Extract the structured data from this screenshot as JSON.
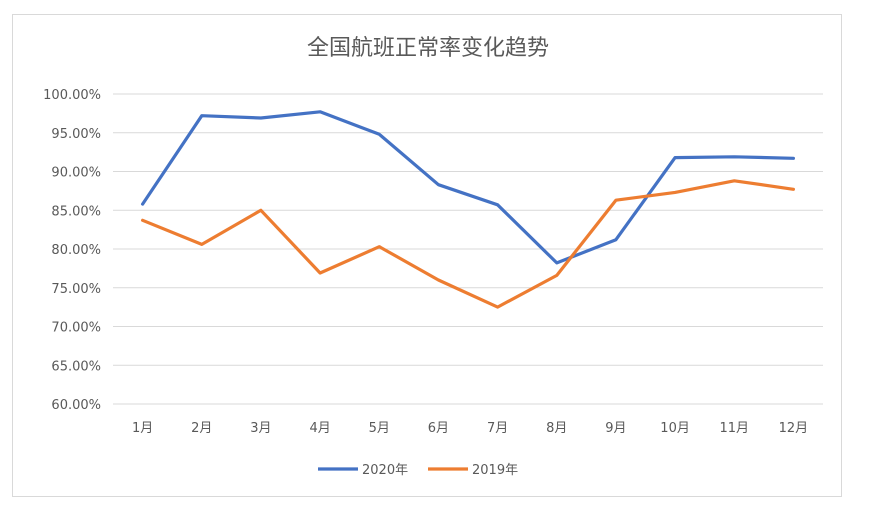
{
  "chart_data": {
    "type": "line",
    "title": "全国航班正常率变化趋势",
    "xlabel": "",
    "ylabel": "",
    "categories": [
      "1月",
      "2月",
      "3月",
      "4月",
      "5月",
      "6月",
      "7月",
      "8月",
      "9月",
      "10月",
      "11月",
      "12月"
    ],
    "series": [
      {
        "name": "2020年",
        "color": "#4472C4",
        "values": [
          85.8,
          97.2,
          96.9,
          97.7,
          94.8,
          88.3,
          85.7,
          78.2,
          81.2,
          91.8,
          91.9,
          91.7
        ]
      },
      {
        "name": "2019年",
        "color": "#ED7D31",
        "values": [
          83.7,
          80.6,
          85.0,
          76.9,
          80.3,
          76.0,
          72.5,
          76.6,
          86.3,
          87.3,
          88.8,
          87.7
        ]
      }
    ],
    "ylim": [
      60,
      100
    ],
    "ytick_labels": [
      "60.00%",
      "65.00%",
      "70.00%",
      "75.00%",
      "80.00%",
      "85.00%",
      "90.00%",
      "95.00%",
      "100.00%"
    ],
    "grid": true,
    "legend_position": "bottom"
  }
}
